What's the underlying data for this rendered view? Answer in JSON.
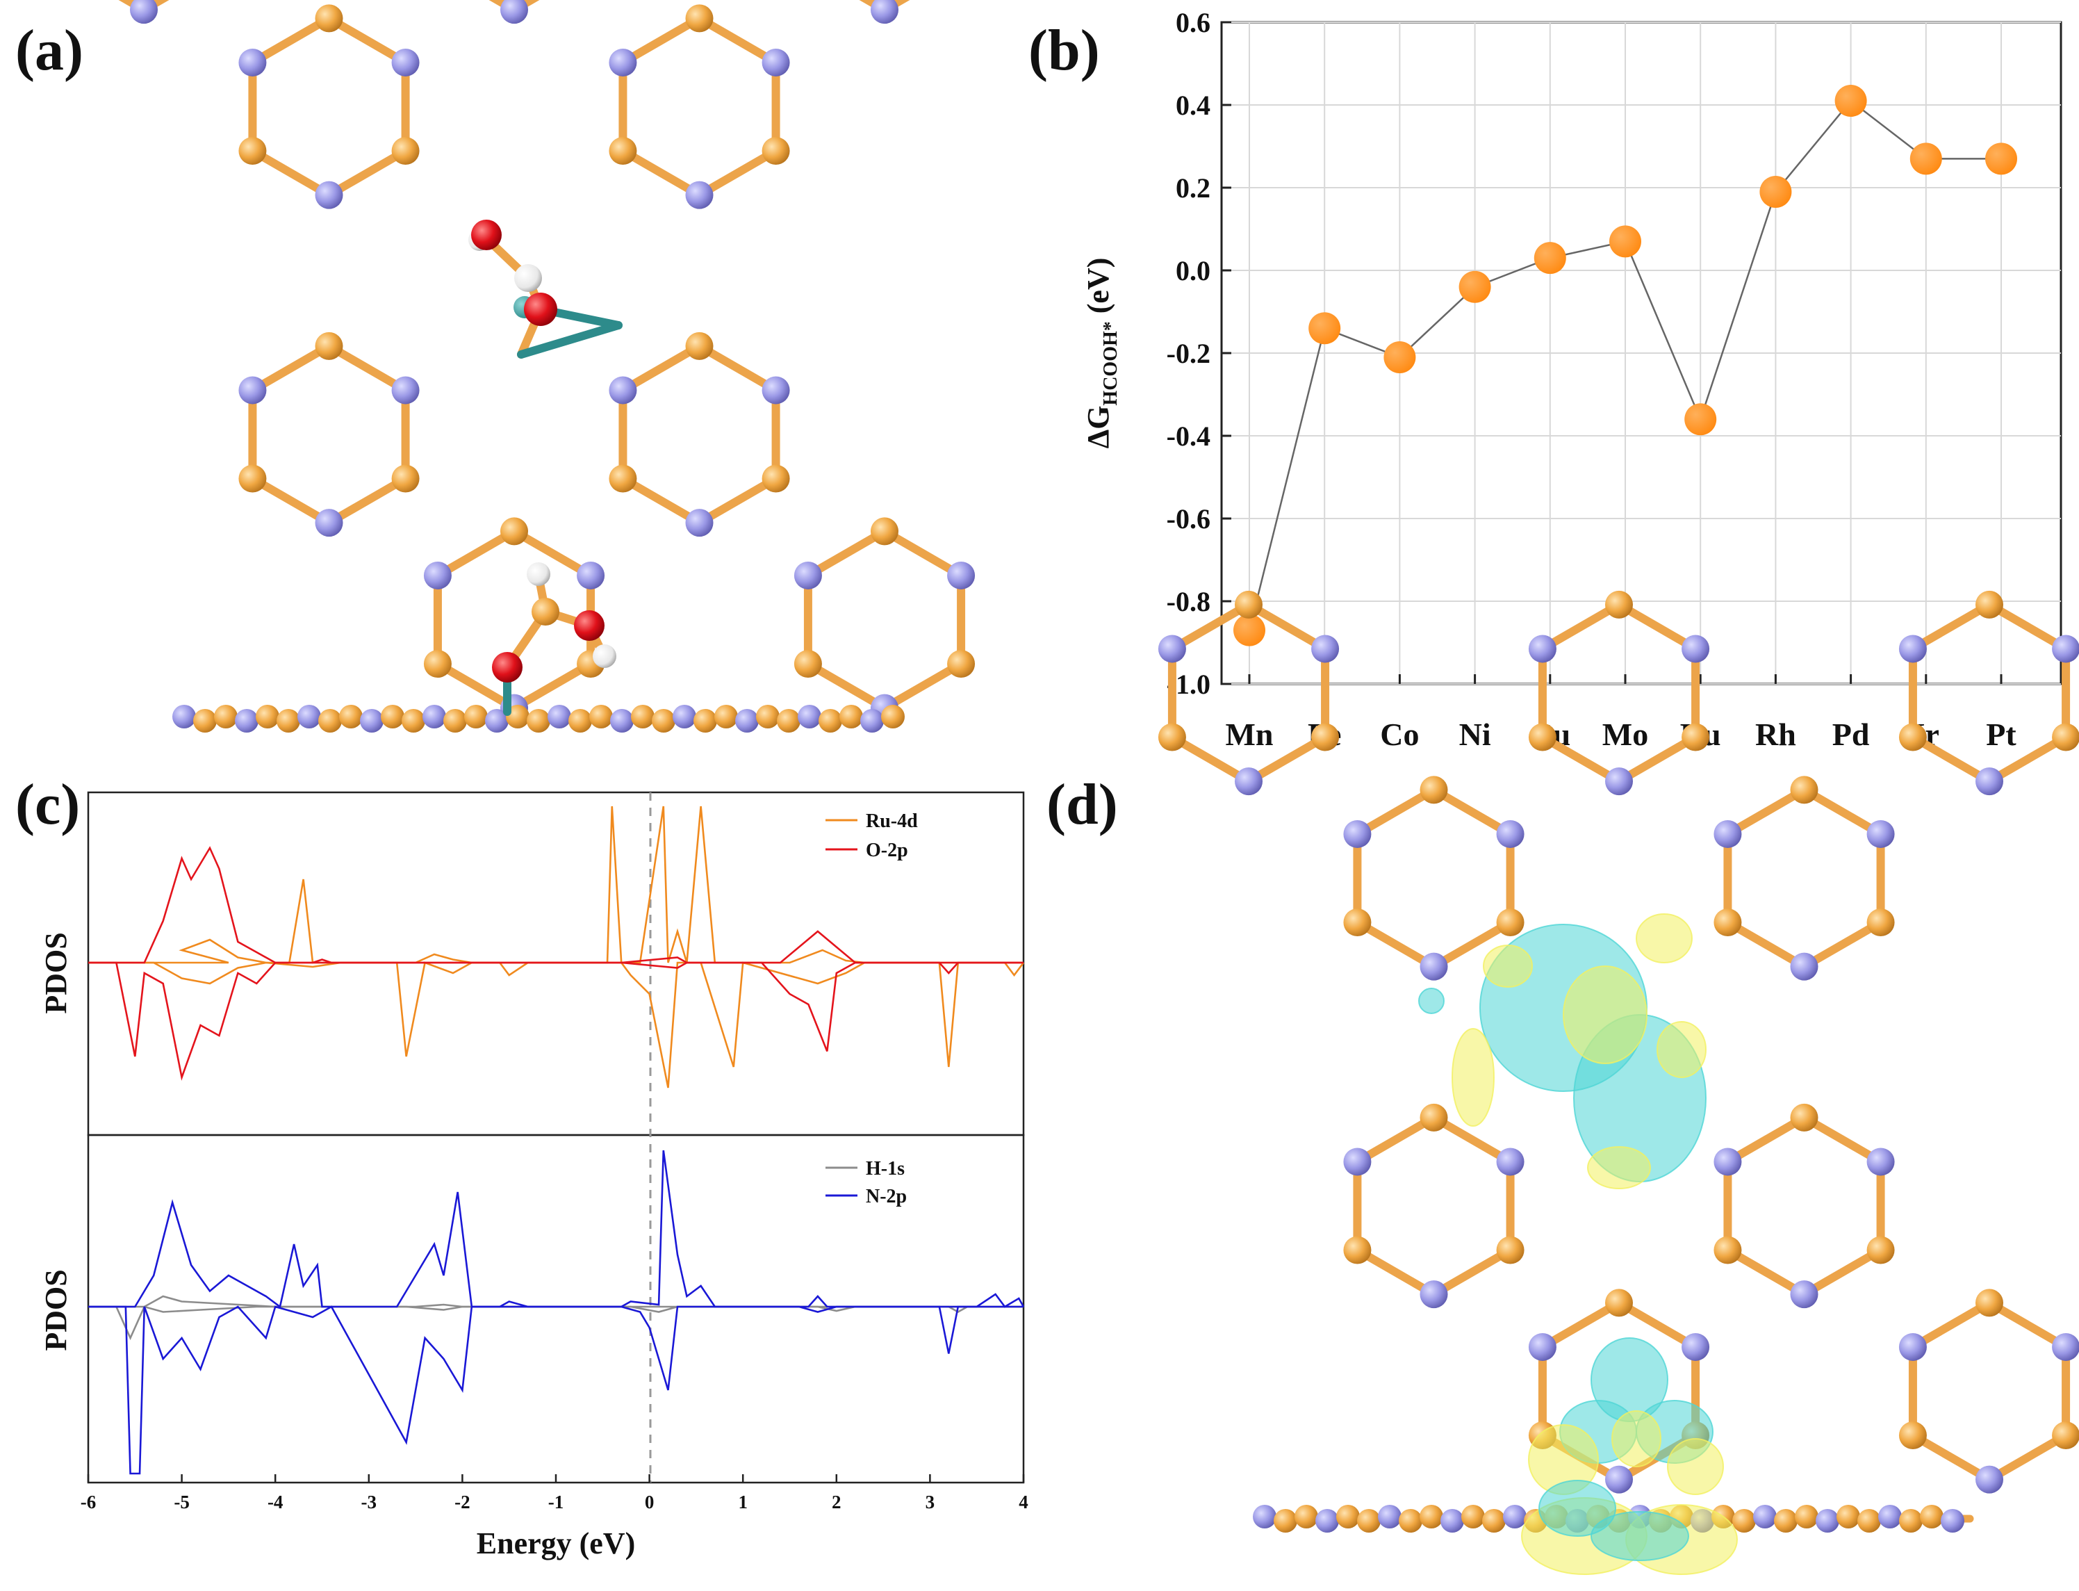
{
  "panels": {
    "a": "(a)",
    "b": "(b)",
    "c": "(c)",
    "d": "(d)"
  },
  "colors": {
    "carbon": "#f0a742",
    "nitrogen": "#9a98e6",
    "oxygen": "#e0111a",
    "hydrogen": "#e8e8e8",
    "metal": "#2d8b8b",
    "marker": "#ff8a12",
    "ru4d": "#f08a1e",
    "o2p": "#e4141c",
    "h1s": "#8c8c8c",
    "n2p": "#1a18d6",
    "cyan_lobe": "#4fd6d6",
    "yellow_lobe": "#f2f060"
  },
  "chart_data": [
    {
      "id": "b",
      "type": "scatter-line",
      "categories": [
        "Mn",
        "Fe",
        "Co",
        "Ni",
        "Cu",
        "Mo",
        "Ru",
        "Rh",
        "Pd",
        "Ir",
        "Pt"
      ],
      "values": [
        -0.87,
        -0.14,
        -0.21,
        -0.04,
        0.03,
        0.07,
        -0.36,
        0.19,
        0.41,
        0.27,
        0.27
      ],
      "ylabel_main": "ΔG",
      "ylabel_sub": "HCOOH*",
      "ylabel_unit": "(eV)",
      "ylim": [
        -1.0,
        0.6
      ],
      "yticks": [
        -1.0,
        -0.8,
        -0.6,
        -0.4,
        -0.2,
        0.0,
        0.2,
        0.4,
        0.6
      ],
      "ytick_labels": [
        "-1.0",
        "-0.8",
        "-0.6",
        "-0.4",
        "-0.2",
        "0.0",
        "0.2",
        "0.4",
        "0.6"
      ],
      "grid": true
    },
    {
      "id": "c-top",
      "type": "line",
      "ylabel": "PDOS",
      "xlim": [
        -6,
        4
      ],
      "legend": [
        "Ru-4d",
        "O-2p"
      ],
      "series": [
        {
          "name": "Ru-4d",
          "points": [
            [
              -6,
              0
            ],
            [
              -4.5,
              0
            ],
            [
              -5.0,
              0.12
            ],
            [
              -4.7,
              0.22
            ],
            [
              -4.4,
              0.05
            ],
            [
              -4.1,
              0
            ],
            [
              -3.85,
              0
            ],
            [
              -3.7,
              0.8
            ],
            [
              -3.6,
              0
            ],
            [
              -3.3,
              0
            ],
            [
              -2.5,
              0
            ],
            [
              -2.3,
              0.08
            ],
            [
              -2.1,
              0.03
            ],
            [
              -1.9,
              0
            ],
            [
              -0.45,
              0
            ],
            [
              -0.4,
              1.5
            ],
            [
              -0.3,
              0
            ],
            [
              -0.1,
              0
            ],
            [
              0.15,
              1.5
            ],
            [
              0.2,
              0
            ],
            [
              0.3,
              0.3
            ],
            [
              0.4,
              0
            ],
            [
              0.55,
              1.5
            ],
            [
              0.7,
              0
            ],
            [
              1.5,
              0
            ],
            [
              1.85,
              0.12
            ],
            [
              2.1,
              0.02
            ],
            [
              2.3,
              0
            ],
            [
              4,
              0
            ]
          ]
        },
        {
          "name": "Ru-4d-down",
          "points": [
            [
              -6,
              0
            ],
            [
              -5.3,
              0
            ],
            [
              -5.0,
              -0.15
            ],
            [
              -4.7,
              -0.2
            ],
            [
              -4.4,
              -0.05
            ],
            [
              -4.1,
              0
            ],
            [
              -3.6,
              -0.04
            ],
            [
              -3.3,
              0
            ],
            [
              -2.7,
              0
            ],
            [
              -2.6,
              -0.9
            ],
            [
              -2.4,
              0
            ],
            [
              -2.1,
              -0.1
            ],
            [
              -1.9,
              0
            ],
            [
              -1.6,
              0
            ],
            [
              -1.5,
              -0.12
            ],
            [
              -1.3,
              0
            ],
            [
              -0.3,
              0
            ],
            [
              -0.2,
              -0.12
            ],
            [
              0.0,
              -0.3
            ],
            [
              0.2,
              -1.2
            ],
            [
              0.3,
              0
            ],
            [
              0.55,
              0
            ],
            [
              0.9,
              -1.0
            ],
            [
              1.0,
              0
            ],
            [
              1.8,
              -0.2
            ],
            [
              2.1,
              -0.1
            ],
            [
              2.3,
              0
            ],
            [
              3.1,
              0
            ],
            [
              3.2,
              -1.0
            ],
            [
              3.3,
              0
            ],
            [
              3.8,
              0
            ],
            [
              3.9,
              -0.12
            ],
            [
              4,
              0
            ]
          ]
        },
        {
          "name": "O-2p",
          "points": [
            [
              -6,
              0
            ],
            [
              -5.4,
              0
            ],
            [
              -5.2,
              0.4
            ],
            [
              -5.0,
              1.0
            ],
            [
              -4.9,
              0.8
            ],
            [
              -4.7,
              1.1
            ],
            [
              -4.6,
              0.9
            ],
            [
              -4.4,
              0.2
            ],
            [
              -4.2,
              0.1
            ],
            [
              -4.0,
              0
            ],
            [
              -3.6,
              0
            ],
            [
              -3.5,
              0.03
            ],
            [
              -3.4,
              0
            ],
            [
              -0.3,
              0
            ],
            [
              0.3,
              0.05
            ],
            [
              0.4,
              0
            ],
            [
              1.4,
              0
            ],
            [
              1.8,
              0.3
            ],
            [
              2.0,
              0.15
            ],
            [
              2.2,
              0
            ],
            [
              4,
              0
            ]
          ]
        },
        {
          "name": "O-2p-down",
          "points": [
            [
              -6,
              0
            ],
            [
              -5.7,
              0
            ],
            [
              -5.5,
              -0.9
            ],
            [
              -5.4,
              -0.1
            ],
            [
              -5.2,
              -0.2
            ],
            [
              -5.0,
              -1.1
            ],
            [
              -4.8,
              -0.6
            ],
            [
              -4.6,
              -0.7
            ],
            [
              -4.4,
              -0.1
            ],
            [
              -4.2,
              -0.2
            ],
            [
              -4.0,
              0
            ],
            [
              -3.6,
              0
            ],
            [
              -1.0,
              0
            ],
            [
              -0.3,
              0
            ],
            [
              0.3,
              -0.05
            ],
            [
              0.4,
              0
            ],
            [
              1.2,
              0
            ],
            [
              1.5,
              -0.3
            ],
            [
              1.7,
              -0.4
            ],
            [
              1.9,
              -0.85
            ],
            [
              2.0,
              -0.1
            ],
            [
              2.2,
              0
            ],
            [
              3.1,
              0
            ],
            [
              3.2,
              -0.1
            ],
            [
              3.3,
              0
            ],
            [
              4,
              0
            ]
          ]
        }
      ]
    },
    {
      "id": "c-bottom",
      "type": "line",
      "ylabel": "PDOS",
      "xlabel": "Energy (eV)",
      "xlim": [
        -6,
        4
      ],
      "xticks": [
        -6,
        -5,
        -4,
        -3,
        -2,
        -1,
        0,
        1,
        2,
        3,
        4
      ],
      "xtick_labels": [
        "-6",
        "-5",
        "-4",
        "-3",
        "-2",
        "-1",
        "0",
        "1",
        "2",
        "3",
        "4"
      ],
      "legend": [
        "H-1s",
        "N-2p"
      ],
      "series": [
        {
          "name": "H-1s",
          "points": [
            [
              -6,
              0
            ],
            [
              -5.4,
              0
            ],
            [
              -5.2,
              0.1
            ],
            [
              -5.0,
              0.05
            ],
            [
              -4.6,
              0.03
            ],
            [
              -4.0,
              0
            ],
            [
              -2.5,
              0
            ],
            [
              -2.2,
              0.02
            ],
            [
              -2.0,
              0
            ],
            [
              4,
              0
            ]
          ]
        },
        {
          "name": "H-1s-down",
          "points": [
            [
              -6,
              0
            ],
            [
              -5.7,
              0
            ],
            [
              -5.55,
              -0.3
            ],
            [
              -5.4,
              0
            ],
            [
              -5.2,
              -0.05
            ],
            [
              -4.8,
              -0.03
            ],
            [
              -4.2,
              0
            ],
            [
              -2.6,
              0
            ],
            [
              -2.2,
              -0.03
            ],
            [
              -2.0,
              0
            ],
            [
              -0.2,
              0
            ],
            [
              0.1,
              -0.05
            ],
            [
              0.3,
              0
            ],
            [
              1.8,
              0
            ],
            [
              2.0,
              -0.04
            ],
            [
              2.2,
              0
            ],
            [
              3.2,
              0
            ],
            [
              3.3,
              -0.05
            ],
            [
              3.4,
              0
            ],
            [
              4,
              0
            ]
          ]
        },
        {
          "name": "N-2p",
          "points": [
            [
              -6,
              0
            ],
            [
              -5.5,
              0
            ],
            [
              -5.3,
              0.3
            ],
            [
              -5.1,
              1.0
            ],
            [
              -4.9,
              0.4
            ],
            [
              -4.7,
              0.15
            ],
            [
              -4.5,
              0.3
            ],
            [
              -4.3,
              0.2
            ],
            [
              -4.1,
              0.1
            ],
            [
              -3.95,
              0
            ],
            [
              -3.8,
              0.6
            ],
            [
              -3.7,
              0.2
            ],
            [
              -3.55,
              0.4
            ],
            [
              -3.5,
              0
            ],
            [
              -2.7,
              0
            ],
            [
              -2.5,
              0.3
            ],
            [
              -2.3,
              0.6
            ],
            [
              -2.2,
              0.3
            ],
            [
              -2.05,
              1.1
            ],
            [
              -1.9,
              0
            ],
            [
              -1.6,
              0
            ],
            [
              -1.5,
              0.05
            ],
            [
              -1.3,
              0
            ],
            [
              -0.3,
              0
            ],
            [
              -0.2,
              0.05
            ],
            [
              0.1,
              0.02
            ],
            [
              0.15,
              1.5
            ],
            [
              0.3,
              0.5
            ],
            [
              0.4,
              0.1
            ],
            [
              0.55,
              0.2
            ],
            [
              0.7,
              0
            ],
            [
              1.7,
              0
            ],
            [
              1.8,
              0.1
            ],
            [
              1.9,
              0
            ],
            [
              3.5,
              0
            ],
            [
              3.7,
              0.12
            ],
            [
              3.8,
              0
            ],
            [
              3.95,
              0.08
            ],
            [
              4,
              0
            ]
          ]
        },
        {
          "name": "N-2p-down",
          "points": [
            [
              -6,
              0
            ],
            [
              -5.6,
              0
            ],
            [
              -5.55,
              -1.6
            ],
            [
              -5.45,
              -1.6
            ],
            [
              -5.4,
              0
            ],
            [
              -5.2,
              -0.5
            ],
            [
              -5.0,
              -0.3
            ],
            [
              -4.8,
              -0.6
            ],
            [
              -4.6,
              -0.1
            ],
            [
              -4.4,
              0
            ],
            [
              -4.1,
              -0.3
            ],
            [
              -4.0,
              0
            ],
            [
              -3.6,
              -0.1
            ],
            [
              -3.4,
              0
            ],
            [
              -2.6,
              -1.3
            ],
            [
              -2.4,
              -0.3
            ],
            [
              -2.2,
              -0.5
            ],
            [
              -2.0,
              -0.8
            ],
            [
              -1.9,
              0
            ],
            [
              -0.3,
              0
            ],
            [
              -0.1,
              -0.05
            ],
            [
              0.0,
              -0.2
            ],
            [
              0.2,
              -0.8
            ],
            [
              0.3,
              0
            ],
            [
              1.6,
              0
            ],
            [
              1.8,
              -0.05
            ],
            [
              2.0,
              0
            ],
            [
              3.1,
              0
            ],
            [
              3.2,
              -0.45
            ],
            [
              3.3,
              0
            ],
            [
              4,
              0
            ]
          ]
        }
      ]
    }
  ]
}
